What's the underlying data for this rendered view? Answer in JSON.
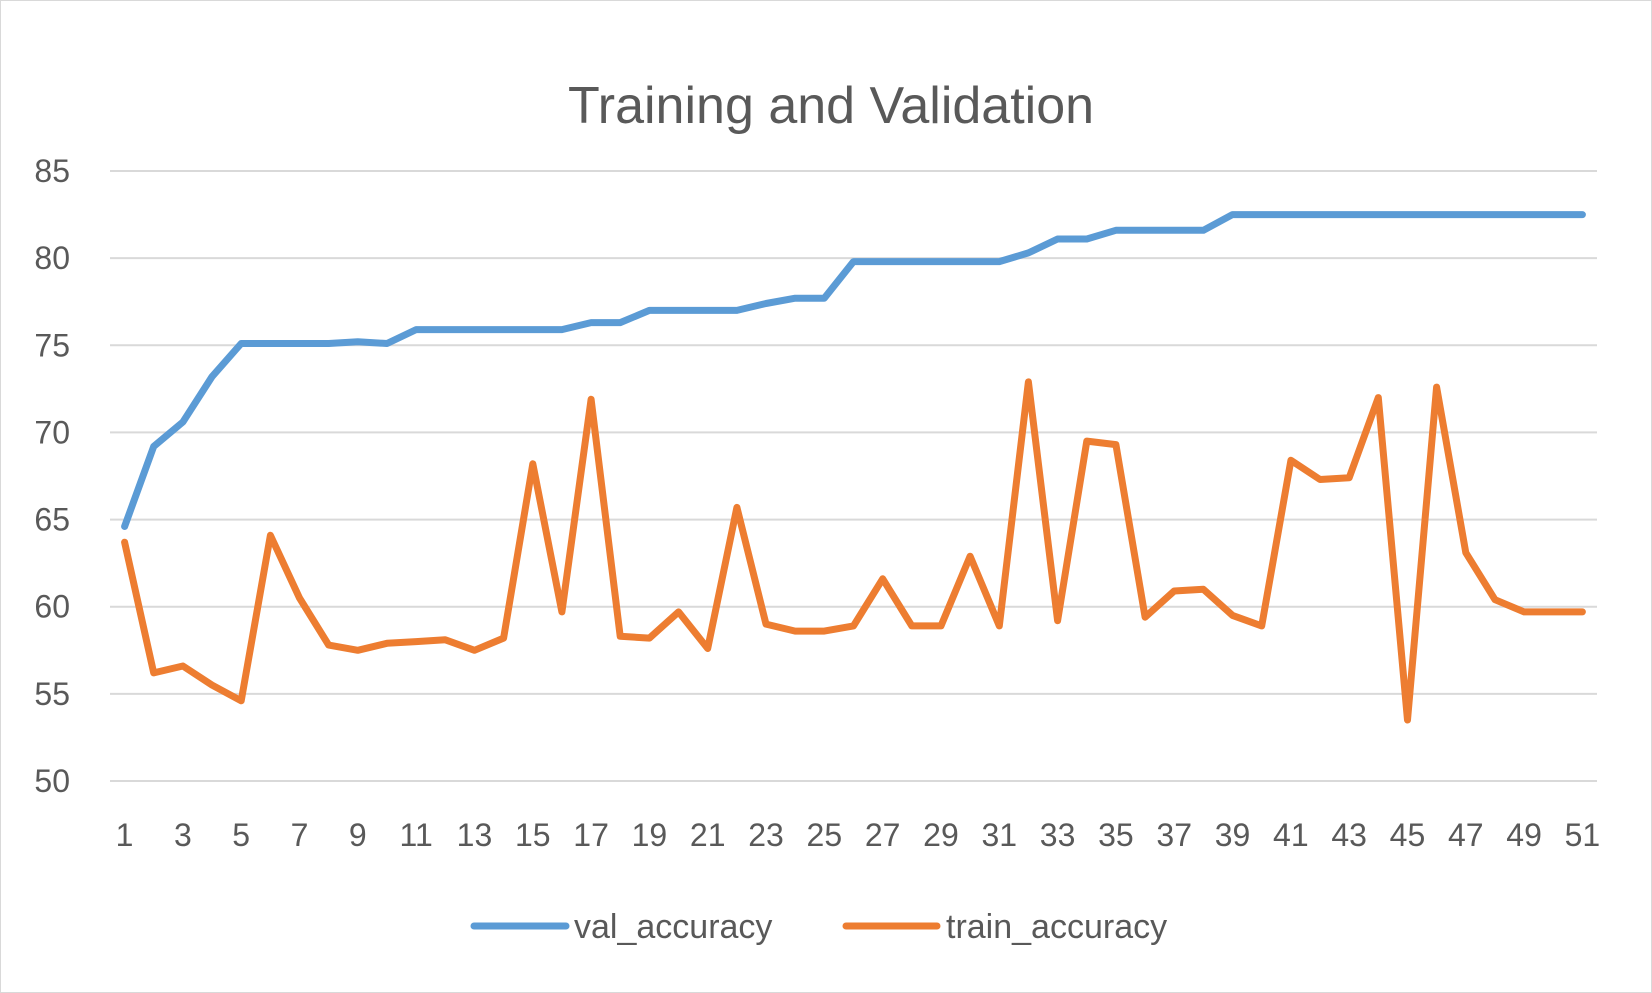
{
  "chart_data": {
    "type": "line",
    "title": "Training and Validation",
    "xlabel": "",
    "ylabel": "",
    "x": [
      1,
      2,
      3,
      4,
      5,
      6,
      7,
      8,
      9,
      10,
      11,
      12,
      13,
      14,
      15,
      16,
      17,
      18,
      19,
      20,
      21,
      22,
      23,
      24,
      25,
      26,
      27,
      28,
      29,
      30,
      31,
      32,
      33,
      34,
      35,
      36,
      37,
      38,
      39,
      40,
      41,
      42,
      43,
      44,
      45,
      46,
      47,
      48,
      49,
      50,
      51
    ],
    "x_tick_labels": [
      "1",
      "3",
      "5",
      "7",
      "9",
      "11",
      "13",
      "15",
      "17",
      "19",
      "21",
      "23",
      "25",
      "27",
      "29",
      "31",
      "33",
      "35",
      "37",
      "39",
      "41",
      "43",
      "45",
      "47",
      "49",
      "51"
    ],
    "ylim": [
      50,
      85
    ],
    "y_tick_labels": [
      "50",
      "55",
      "60",
      "65",
      "70",
      "75",
      "80",
      "85"
    ],
    "y_ticks": [
      50,
      55,
      60,
      65,
      70,
      75,
      80,
      85
    ],
    "grid": "horizontal",
    "legend_position": "bottom",
    "series": [
      {
        "name": "val_accuracy",
        "color": "#5b9bd5",
        "values": [
          64.6,
          69.2,
          70.6,
          73.2,
          75.1,
          75.1,
          75.1,
          75.1,
          75.2,
          75.1,
          75.9,
          75.9,
          75.9,
          75.9,
          75.9,
          75.9,
          76.3,
          76.3,
          77.0,
          77.0,
          77.0,
          77.0,
          77.4,
          77.7,
          77.7,
          79.8,
          79.8,
          79.8,
          79.8,
          79.8,
          79.8,
          80.3,
          81.1,
          81.1,
          81.6,
          81.6,
          81.6,
          81.6,
          82.5,
          82.5,
          82.5,
          82.5,
          82.5,
          82.5,
          82.5,
          82.5,
          82.5,
          82.5,
          82.5,
          82.5,
          82.5
        ]
      },
      {
        "name": "train_accuracy",
        "color": "#ed7d31",
        "values": [
          63.7,
          56.2,
          56.6,
          55.5,
          54.6,
          64.1,
          60.5,
          57.8,
          57.5,
          57.9,
          58.0,
          58.1,
          57.5,
          58.2,
          68.2,
          59.7,
          71.9,
          58.3,
          58.2,
          59.7,
          57.6,
          65.7,
          59.0,
          58.6,
          58.6,
          58.9,
          61.6,
          58.9,
          58.9,
          62.9,
          58.9,
          72.9,
          59.2,
          69.5,
          69.3,
          59.4,
          60.9,
          61.0,
          59.5,
          58.9,
          68.4,
          67.3,
          67.4,
          72.0,
          53.5,
          72.6,
          63.1,
          60.4,
          59.7,
          59.7,
          59.7
        ]
      }
    ]
  }
}
